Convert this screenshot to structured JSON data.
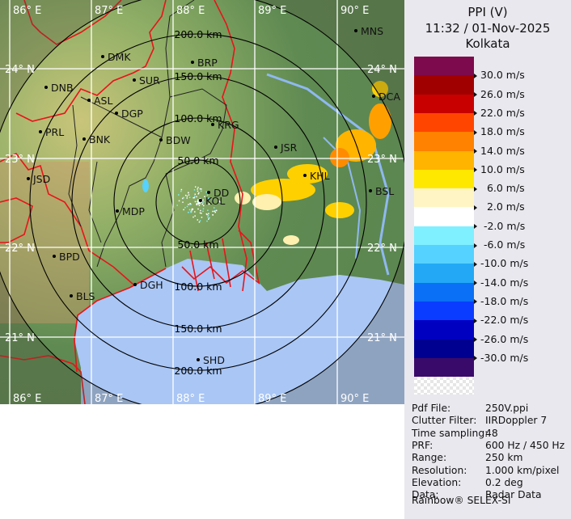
{
  "header": {
    "product": "PPI (V)",
    "datetime": "11:32 / 01-Nov-2025",
    "station": "Kolkata"
  },
  "legend": {
    "unit": "m/s",
    "labels": [
      "30.0 m/s",
      "26.0 m/s",
      "22.0 m/s",
      "18.0 m/s",
      "14.0 m/s",
      "10.0 m/s",
      "  6.0 m/s",
      "  2.0 m/s",
      " -2.0 m/s",
      " -6.0 m/s",
      "-10.0 m/s",
      "-14.0 m/s",
      "-18.0 m/s",
      "-22.0 m/s",
      "-26.0 m/s",
      "-30.0 m/s"
    ],
    "colors": [
      "#7d0a4c",
      "#a10000",
      "#c80000",
      "#ff4500",
      "#ff8200",
      "#ffb400",
      "#ffe800",
      "#fff5c4",
      "#ffffff",
      "#7ff0ff",
      "#55d2ff",
      "#22a8f5",
      "#0a70f5",
      "#0a3cff",
      "#0000c0",
      "#000090",
      "#3a0a6a"
    ]
  },
  "info": [
    {
      "label": "Pdf File:",
      "value": "250V.ppi"
    },
    {
      "label": "Clutter Filter:",
      "value": "IIRDoppler 7"
    },
    {
      "label": "Time sampling:",
      "value": "48"
    },
    {
      "label": "PRF:",
      "value": "600 Hz / 450 Hz"
    },
    {
      "label": "Range:",
      "value": "250 km"
    },
    {
      "label": "Resolution:",
      "value": "1.000 km/pixel"
    },
    {
      "label": "Elevation:",
      "value": "0.2 deg"
    },
    {
      "label": "Data:",
      "value": "Radar Data"
    }
  ],
  "footer": "Rainbow® SELEX-SI",
  "map": {
    "longitude_labels": [
      "86° E",
      "87° E",
      "88° E",
      "89° E",
      "90° E"
    ],
    "latitude_labels": [
      "24° N",
      "23° N",
      "22° N",
      "21° N"
    ],
    "range_ring_labels": [
      "50.0 km",
      "100.0 km",
      "150.0 km",
      "200.0 km"
    ],
    "cities": [
      "MNS",
      "DMK",
      "BRP",
      "DNB",
      "SUR",
      "ASL",
      "DGP",
      "DCA",
      "KRG",
      "PRL",
      "BNK",
      "BDW",
      "JSR",
      "KHL",
      "JSD",
      "BSL",
      "MDP",
      "DD",
      "KOL",
      "BPD",
      "BLS",
      "DGH",
      "SHD"
    ],
    "colors": {
      "land": "#5f8a52",
      "sea": "#a9c6f5",
      "border": "#e8141a",
      "grid": "#ffffff",
      "rings": "#000000"
    }
  }
}
